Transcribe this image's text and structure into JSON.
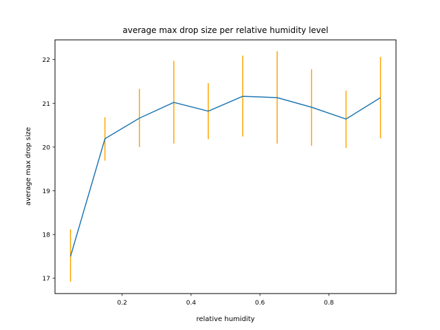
{
  "chart_data": {
    "type": "line",
    "title": "average max drop size per relative humidity level",
    "xlabel": "relative humidity",
    "ylabel": "average max drop size",
    "xlim": [
      0.005,
      0.995
    ],
    "ylim": [
      16.65,
      22.45
    ],
    "xticks": [
      0.2,
      0.4,
      0.6,
      0.8
    ],
    "xtick_labels": [
      "0.2",
      "0.4",
      "0.6",
      "0.8"
    ],
    "yticks": [
      17,
      18,
      19,
      20,
      21,
      22
    ],
    "ytick_labels": [
      "17",
      "18",
      "19",
      "20",
      "21",
      "22"
    ],
    "grid": false,
    "legend": "none",
    "colors": {
      "line": "#1f77b4",
      "error": "#ffa500"
    },
    "series": [
      {
        "x": [
          0.05,
          0.15,
          0.25,
          0.35,
          0.45,
          0.55,
          0.65,
          0.75,
          0.85,
          0.95
        ],
        "y": [
          17.5,
          20.19,
          20.66,
          21.02,
          20.82,
          21.16,
          21.13,
          20.91,
          20.64,
          21.13
        ],
        "err_low": [
          16.92,
          19.69,
          20.0,
          20.08,
          20.18,
          20.24,
          20.08,
          20.03,
          19.98,
          20.2
        ],
        "err_high": [
          18.12,
          20.68,
          21.33,
          21.97,
          21.46,
          22.09,
          22.19,
          21.78,
          21.29,
          22.06
        ]
      }
    ]
  }
}
